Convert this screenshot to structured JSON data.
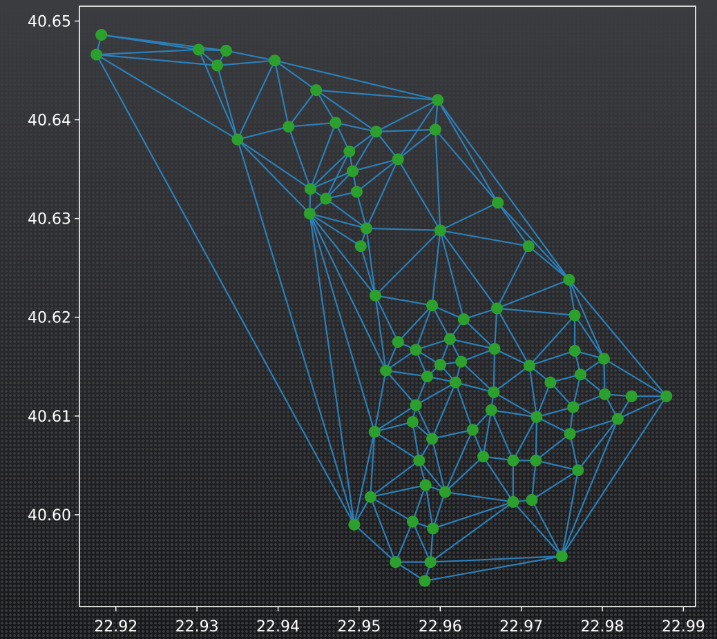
{
  "chart_data": {
    "type": "scatter",
    "title": "",
    "xlabel": "",
    "ylabel": "",
    "xlim": [
      22.9155,
      22.9915
    ],
    "ylim": [
      40.5907,
      40.6515
    ],
    "x_ticks": [
      "22.92",
      "22.93",
      "22.94",
      "22.95",
      "22.96",
      "22.97",
      "22.98",
      "22.99"
    ],
    "y_ticks": [
      "40.60",
      "40.61",
      "40.62",
      "40.63",
      "40.64",
      "40.65"
    ],
    "x_tick_values": [
      22.92,
      22.93,
      22.94,
      22.95,
      22.96,
      22.97,
      22.98,
      22.99
    ],
    "y_tick_values": [
      40.6,
      40.61,
      40.62,
      40.63,
      40.64,
      40.65
    ],
    "grid": false,
    "point_color": "#2ca02c",
    "edge_color": "#2a80b9",
    "points": [
      [
        22.9182,
        40.6486
      ],
      [
        22.9176,
        40.6466
      ],
      [
        22.9302,
        40.6471
      ],
      [
        22.9336,
        40.647
      ],
      [
        22.9325,
        40.6455
      ],
      [
        22.9396,
        40.646
      ],
      [
        22.935,
        40.638
      ],
      [
        22.9413,
        40.6393
      ],
      [
        22.9447,
        40.643
      ],
      [
        22.9471,
        40.6397
      ],
      [
        22.9521,
        40.6388
      ],
      [
        22.9597,
        40.642
      ],
      [
        22.9594,
        40.639
      ],
      [
        22.9488,
        40.6368
      ],
      [
        22.9548,
        40.636
      ],
      [
        22.9492,
        40.6348
      ],
      [
        22.944,
        40.633
      ],
      [
        22.9459,
        40.632
      ],
      [
        22.9497,
        40.6327
      ],
      [
        22.9439,
        40.6305
      ],
      [
        22.9509,
        40.629
      ],
      [
        22.9502,
        40.6272
      ],
      [
        22.96,
        40.6288
      ],
      [
        22.9671,
        40.6316
      ],
      [
        22.9709,
        40.6272
      ],
      [
        22.9759,
        40.6238
      ],
      [
        22.952,
        40.6222
      ],
      [
        22.959,
        40.6212
      ],
      [
        22.9629,
        40.6198
      ],
      [
        22.967,
        40.6209
      ],
      [
        22.9766,
        40.6202
      ],
      [
        22.9548,
        40.6175
      ],
      [
        22.957,
        40.6167
      ],
      [
        22.9612,
        40.6178
      ],
      [
        22.9533,
        40.6146
      ],
      [
        22.9584,
        40.614
      ],
      [
        22.96,
        40.6152
      ],
      [
        22.9626,
        40.6155
      ],
      [
        22.9619,
        40.6134
      ],
      [
        22.9667,
        40.6168
      ],
      [
        22.971,
        40.6151
      ],
      [
        22.9766,
        40.6166
      ],
      [
        22.9773,
        40.6142
      ],
      [
        22.9802,
        40.6158
      ],
      [
        22.9736,
        40.6134
      ],
      [
        22.957,
        40.6111
      ],
      [
        22.9666,
        40.6124
      ],
      [
        22.9764,
        40.6109
      ],
      [
        22.9803,
        40.6122
      ],
      [
        22.9836,
        40.612
      ],
      [
        22.9879,
        40.612
      ],
      [
        22.9519,
        40.6084
      ],
      [
        22.9566,
        40.6094
      ],
      [
        22.959,
        40.6077
      ],
      [
        22.964,
        40.6086
      ],
      [
        22.9663,
        40.6106
      ],
      [
        22.9719,
        40.6099
      ],
      [
        22.976,
        40.6082
      ],
      [
        22.9819,
        40.6097
      ],
      [
        22.9574,
        40.6055
      ],
      [
        22.9653,
        40.6059
      ],
      [
        22.969,
        40.6055
      ],
      [
        22.9718,
        40.6055
      ],
      [
        22.977,
        40.6045
      ],
      [
        22.9514,
        40.6018
      ],
      [
        22.9582,
        40.603
      ],
      [
        22.9606,
        40.6023
      ],
      [
        22.969,
        40.6013
      ],
      [
        22.9713,
        40.6015
      ],
      [
        22.9494,
        40.599
      ],
      [
        22.9566,
        40.5993
      ],
      [
        22.9591,
        40.5986
      ],
      [
        22.9545,
        40.5952
      ],
      [
        22.9588,
        40.5952
      ],
      [
        22.975,
        40.5958
      ],
      [
        22.9581,
        40.5933
      ]
    ],
    "edges": [
      [
        0,
        1
      ],
      [
        0,
        2
      ],
      [
        0,
        3
      ],
      [
        1,
        2
      ],
      [
        1,
        4
      ],
      [
        1,
        6
      ],
      [
        1,
        69
      ],
      [
        2,
        3
      ],
      [
        2,
        4
      ],
      [
        2,
        6
      ],
      [
        3,
        4
      ],
      [
        3,
        5
      ],
      [
        4,
        5
      ],
      [
        4,
        6
      ],
      [
        5,
        6
      ],
      [
        5,
        7
      ],
      [
        5,
        8
      ],
      [
        5,
        11
      ],
      [
        6,
        7
      ],
      [
        6,
        16
      ],
      [
        6,
        19
      ],
      [
        6,
        69
      ],
      [
        7,
        8
      ],
      [
        7,
        9
      ],
      [
        7,
        16
      ],
      [
        8,
        9
      ],
      [
        8,
        10
      ],
      [
        8,
        11
      ],
      [
        9,
        10
      ],
      [
        9,
        13
      ],
      [
        9,
        16
      ],
      [
        10,
        11
      ],
      [
        10,
        12
      ],
      [
        10,
        13
      ],
      [
        10,
        14
      ],
      [
        10,
        15
      ],
      [
        11,
        12
      ],
      [
        11,
        14
      ],
      [
        11,
        23
      ],
      [
        11,
        25
      ],
      [
        12,
        14
      ],
      [
        12,
        22
      ],
      [
        12,
        23
      ],
      [
        13,
        15
      ],
      [
        13,
        16
      ],
      [
        13,
        17
      ],
      [
        14,
        15
      ],
      [
        14,
        18
      ],
      [
        14,
        20
      ],
      [
        14,
        22
      ],
      [
        15,
        16
      ],
      [
        15,
        17
      ],
      [
        15,
        18
      ],
      [
        16,
        17
      ],
      [
        16,
        19
      ],
      [
        17,
        18
      ],
      [
        17,
        19
      ],
      [
        17,
        20
      ],
      [
        18,
        20
      ],
      [
        19,
        20
      ],
      [
        19,
        21
      ],
      [
        19,
        26
      ],
      [
        19,
        34
      ],
      [
        19,
        51
      ],
      [
        19,
        69
      ],
      [
        20,
        21
      ],
      [
        20,
        22
      ],
      [
        20,
        26
      ],
      [
        21,
        26
      ],
      [
        22,
        23
      ],
      [
        22,
        24
      ],
      [
        22,
        26
      ],
      [
        22,
        27
      ],
      [
        22,
        28
      ],
      [
        22,
        29
      ],
      [
        23,
        24
      ],
      [
        23,
        25
      ],
      [
        24,
        25
      ],
      [
        24,
        29
      ],
      [
        25,
        29
      ],
      [
        25,
        30
      ],
      [
        25,
        43
      ],
      [
        25,
        50
      ],
      [
        26,
        27
      ],
      [
        26,
        31
      ],
      [
        26,
        34
      ],
      [
        27,
        28
      ],
      [
        27,
        31
      ],
      [
        27,
        32
      ],
      [
        27,
        33
      ],
      [
        28,
        29
      ],
      [
        28,
        33
      ],
      [
        28,
        39
      ],
      [
        29,
        39
      ],
      [
        29,
        40
      ],
      [
        29,
        30
      ],
      [
        30,
        40
      ],
      [
        30,
        41
      ],
      [
        30,
        43
      ],
      [
        31,
        32
      ],
      [
        31,
        34
      ],
      [
        32,
        33
      ],
      [
        32,
        34
      ],
      [
        32,
        35
      ],
      [
        32,
        36
      ],
      [
        33,
        36
      ],
      [
        33,
        37
      ],
      [
        33,
        39
      ],
      [
        34,
        35
      ],
      [
        34,
        45
      ],
      [
        34,
        51
      ],
      [
        35,
        36
      ],
      [
        35,
        38
      ],
      [
        35,
        45
      ],
      [
        36,
        37
      ],
      [
        36,
        38
      ],
      [
        37,
        38
      ],
      [
        37,
        39
      ],
      [
        37,
        46
      ],
      [
        38,
        45
      ],
      [
        38,
        53
      ],
      [
        38,
        54
      ],
      [
        38,
        46
      ],
      [
        39,
        40
      ],
      [
        39,
        46
      ],
      [
        40,
        41
      ],
      [
        40,
        44
      ],
      [
        40,
        46
      ],
      [
        40,
        56
      ],
      [
        41,
        42
      ],
      [
        41,
        43
      ],
      [
        42,
        43
      ],
      [
        42,
        44
      ],
      [
        42,
        47
      ],
      [
        42,
        48
      ],
      [
        43,
        48
      ],
      [
        43,
        50
      ],
      [
        44,
        47
      ],
      [
        44,
        56
      ],
      [
        45,
        51
      ],
      [
        45,
        52
      ],
      [
        45,
        53
      ],
      [
        46,
        55
      ],
      [
        46,
        56
      ],
      [
        47,
        48
      ],
      [
        47,
        56
      ],
      [
        47,
        57
      ],
      [
        48,
        49
      ],
      [
        48,
        58
      ],
      [
        49,
        50
      ],
      [
        49,
        58
      ],
      [
        50,
        58
      ],
      [
        50,
        74
      ],
      [
        51,
        52
      ],
      [
        51,
        59
      ],
      [
        51,
        64
      ],
      [
        51,
        69
      ],
      [
        52,
        53
      ],
      [
        52,
        59
      ],
      [
        53,
        54
      ],
      [
        53,
        59
      ],
      [
        53,
        66
      ],
      [
        54,
        55
      ],
      [
        54,
        60
      ],
      [
        54,
        66
      ],
      [
        55,
        56
      ],
      [
        55,
        60
      ],
      [
        55,
        61
      ],
      [
        56,
        57
      ],
      [
        56,
        61
      ],
      [
        56,
        62
      ],
      [
        57,
        58
      ],
      [
        57,
        62
      ],
      [
        57,
        63
      ],
      [
        58,
        63
      ],
      [
        58,
        74
      ],
      [
        59,
        64
      ],
      [
        59,
        65
      ],
      [
        59,
        66
      ],
      [
        60,
        61
      ],
      [
        60,
        66
      ],
      [
        60,
        67
      ],
      [
        61,
        62
      ],
      [
        61,
        67
      ],
      [
        62,
        63
      ],
      [
        62,
        68
      ],
      [
        63,
        68
      ],
      [
        63,
        74
      ],
      [
        64,
        65
      ],
      [
        64,
        69
      ],
      [
        64,
        70
      ],
      [
        64,
        72
      ],
      [
        65,
        66
      ],
      [
        65,
        70
      ],
      [
        65,
        71
      ],
      [
        66,
        67
      ],
      [
        66,
        71
      ],
      [
        67,
        68
      ],
      [
        67,
        71
      ],
      [
        67,
        73
      ],
      [
        67,
        74
      ],
      [
        68,
        74
      ],
      [
        69,
        72
      ],
      [
        70,
        71
      ],
      [
        70,
        72
      ],
      [
        70,
        73
      ],
      [
        71,
        73
      ],
      [
        72,
        73
      ],
      [
        72,
        75
      ],
      [
        73,
        75
      ],
      [
        73,
        74
      ],
      [
        75,
        74
      ]
    ]
  }
}
